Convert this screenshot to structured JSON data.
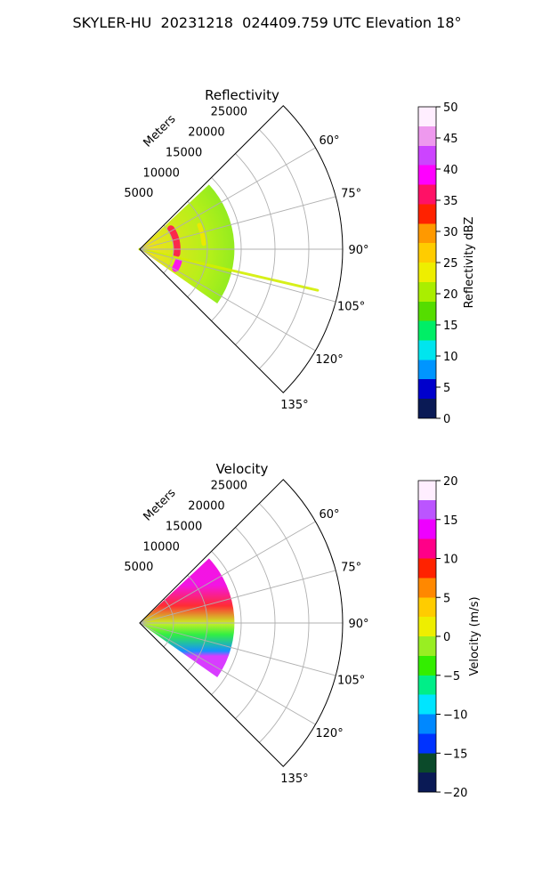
{
  "title": "SKYLER-HU  20231218  024409.759 UTC Elevation 18°",
  "chart_data": [
    {
      "type": "heatmap",
      "projection": "polar-sector",
      "title": "Reflectivity",
      "range_label": "Meters",
      "range_ticks": [
        5000,
        10000,
        15000,
        20000,
        25000
      ],
      "range_tick_labels": [
        "5000",
        "10000",
        "15000",
        "20000",
        "25000"
      ],
      "range_max": 30000,
      "azimuth_ticks": [
        60,
        75,
        90,
        105,
        120,
        135
      ],
      "azimuth_tick_labels": [
        "60°",
        "75°",
        "90°",
        "105°",
        "120°",
        "135°"
      ],
      "azimuth_range": [
        45,
        135
      ],
      "grid": true,
      "colorbar": {
        "label": "Reflectivity dBZ",
        "vmin": 0,
        "vmax": 50,
        "ticks": [
          0,
          5,
          10,
          15,
          20,
          25,
          30,
          35,
          40,
          45,
          50
        ],
        "tick_labels": [
          "0",
          "5",
          "10",
          "15",
          "20",
          "25",
          "30",
          "35",
          "40",
          "45",
          "50"
        ],
        "colormap": "NWSRef",
        "stops": [
          "#0a1a55",
          "#0000cc",
          "#0095ff",
          "#00e5ee",
          "#00ee66",
          "#55dd00",
          "#aaee00",
          "#eeee00",
          "#ffcc00",
          "#ff9900",
          "#ff2200",
          "#ff1166",
          "#ff00ff",
          "#cc44ff",
          "#ee99ee",
          "#ffeeff"
        ]
      },
      "field_pattern": {
        "data_extent_m": [
          0,
          14000
        ],
        "background_dbz": 20,
        "bands": [
          {
            "name": "inner arc",
            "range_m": 5500,
            "azimuth": [
              57,
              97
            ],
            "dbz": 36
          },
          {
            "name": "outer arc",
            "range_m": 9500,
            "azimuth": [
              68,
              85
            ],
            "dbz": 24
          },
          {
            "name": "lower cell",
            "range_m": 6000,
            "azimuth": [
              108,
              118
            ],
            "dbz": 40
          },
          {
            "name": "radial spike",
            "azimuth": 103,
            "range_m": [
              0,
              27000
            ],
            "dbz": 22
          }
        ]
      }
    },
    {
      "type": "heatmap",
      "projection": "polar-sector",
      "title": "Velocity",
      "range_label": "Meters",
      "range_ticks": [
        5000,
        10000,
        15000,
        20000,
        25000
      ],
      "range_tick_labels": [
        "5000",
        "10000",
        "15000",
        "20000",
        "25000"
      ],
      "range_max": 30000,
      "azimuth_ticks": [
        60,
        75,
        90,
        105,
        120,
        135
      ],
      "azimuth_tick_labels": [
        "60°",
        "75°",
        "90°",
        "105°",
        "120°",
        "135°"
      ],
      "azimuth_range": [
        45,
        135
      ],
      "grid": true,
      "colorbar": {
        "label": "Velocity (m/s)",
        "vmin": -20,
        "vmax": 20,
        "ticks": [
          -20,
          -15,
          -10,
          -5,
          0,
          5,
          10,
          15,
          20
        ],
        "tick_labels": [
          "−20",
          "−15",
          "−10",
          "−5",
          "0",
          "5",
          "10",
          "15",
          "20"
        ],
        "colormap": "NWSVel",
        "stops": [
          "#0a1a55",
          "#0b4a2a",
          "#0033ff",
          "#0088ff",
          "#00e5ff",
          "#00ee88",
          "#33ee00",
          "#99ee22",
          "#eeee00",
          "#ffcc00",
          "#ff8800",
          "#ff2200",
          "#ff0088",
          "#ee00ff",
          "#bb55ff",
          "#ffeeff"
        ]
      },
      "field_pattern": {
        "data_extent_m": [
          0,
          14000
        ],
        "azimuth_gradient": [
          {
            "azimuth": 55,
            "mps": 14
          },
          {
            "azimuth": 75,
            "mps": 10
          },
          {
            "azimuth": 90,
            "mps": 0
          },
          {
            "azimuth": 100,
            "mps": -5
          },
          {
            "azimuth": 115,
            "mps": -12
          },
          {
            "azimuth": 120,
            "mps": 16
          }
        ]
      }
    }
  ]
}
